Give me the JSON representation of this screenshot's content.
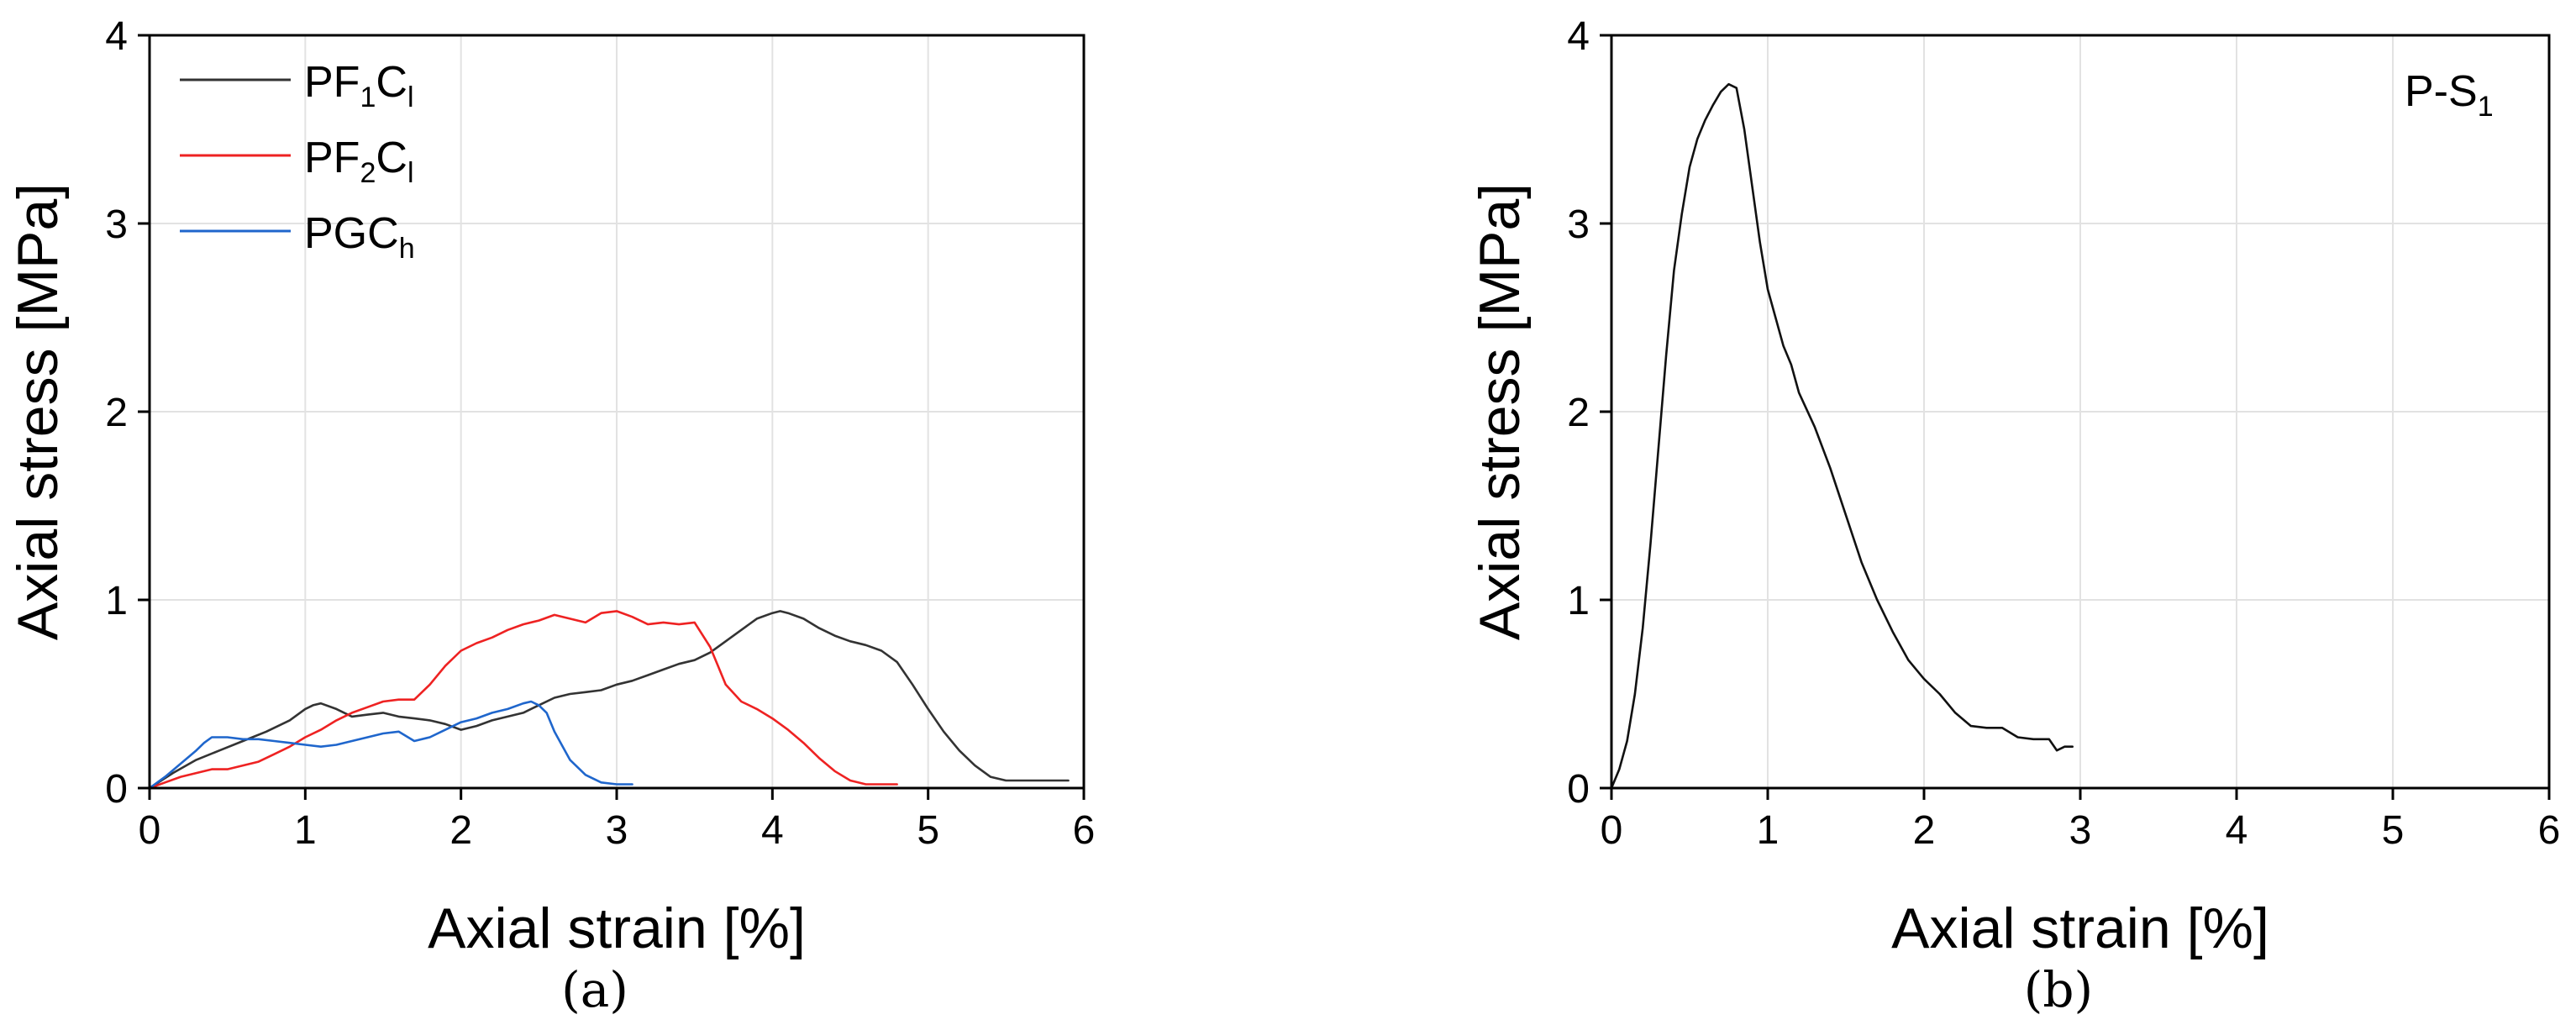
{
  "chart_data": [
    {
      "panel": "(a)",
      "type": "line",
      "xlabel": "Axial strain [%]",
      "ylabel": "Axial stress [MPa]",
      "xlim": [
        0,
        6
      ],
      "ylim": [
        0,
        4
      ],
      "xticks": [
        "0",
        "1",
        "2",
        "3",
        "4",
        "5",
        "6"
      ],
      "yticks": [
        "0",
        "1",
        "2",
        "3",
        "4"
      ],
      "grid": true,
      "legend_position": "top-left",
      "series": [
        {
          "name": "PF1Cl",
          "label_main": [
            "PF",
            "1",
            "C",
            "l"
          ],
          "color": "#333333",
          "x": [
            0,
            0.15,
            0.3,
            0.45,
            0.6,
            0.75,
            0.9,
            1.0,
            1.05,
            1.1,
            1.2,
            1.3,
            1.4,
            1.5,
            1.6,
            1.7,
            1.8,
            1.9,
            2.0,
            2.1,
            2.2,
            2.3,
            2.4,
            2.5,
            2.6,
            2.7,
            2.8,
            2.9,
            3.0,
            3.1,
            3.2,
            3.3,
            3.4,
            3.5,
            3.6,
            3.7,
            3.8,
            3.9,
            4.0,
            4.05,
            4.1,
            4.2,
            4.3,
            4.4,
            4.5,
            4.6,
            4.7,
            4.8,
            4.9,
            5.0,
            5.1,
            5.2,
            5.3,
            5.4,
            5.5,
            5.6,
            5.7,
            5.8,
            5.9
          ],
          "y": [
            0,
            0.08,
            0.15,
            0.2,
            0.25,
            0.3,
            0.36,
            0.42,
            0.44,
            0.45,
            0.42,
            0.38,
            0.39,
            0.4,
            0.38,
            0.37,
            0.36,
            0.34,
            0.31,
            0.33,
            0.36,
            0.38,
            0.4,
            0.44,
            0.48,
            0.5,
            0.51,
            0.52,
            0.55,
            0.57,
            0.6,
            0.63,
            0.66,
            0.68,
            0.72,
            0.78,
            0.84,
            0.9,
            0.93,
            0.94,
            0.93,
            0.9,
            0.85,
            0.81,
            0.78,
            0.76,
            0.73,
            0.67,
            0.55,
            0.42,
            0.3,
            0.2,
            0.12,
            0.06,
            0.04,
            0.04,
            0.04,
            0.04,
            0.04
          ]
        },
        {
          "name": "PF2Cl",
          "label_main": [
            "PF",
            "2",
            "C",
            "l"
          ],
          "color": "#ee2222",
          "x": [
            0,
            0.1,
            0.2,
            0.3,
            0.4,
            0.5,
            0.6,
            0.7,
            0.8,
            0.9,
            1.0,
            1.1,
            1.2,
            1.3,
            1.4,
            1.5,
            1.6,
            1.7,
            1.8,
            1.9,
            2.0,
            2.1,
            2.2,
            2.3,
            2.4,
            2.5,
            2.6,
            2.7,
            2.8,
            2.9,
            3.0,
            3.1,
            3.2,
            3.3,
            3.4,
            3.5,
            3.6,
            3.65,
            3.7,
            3.8,
            3.9,
            4.0,
            4.1,
            4.2,
            4.3,
            4.4,
            4.5,
            4.6,
            4.7,
            4.8
          ],
          "y": [
            0,
            0.03,
            0.06,
            0.08,
            0.1,
            0.1,
            0.12,
            0.14,
            0.18,
            0.22,
            0.27,
            0.31,
            0.36,
            0.4,
            0.43,
            0.46,
            0.47,
            0.47,
            0.55,
            0.65,
            0.73,
            0.77,
            0.8,
            0.84,
            0.87,
            0.89,
            0.92,
            0.9,
            0.88,
            0.93,
            0.94,
            0.91,
            0.87,
            0.88,
            0.87,
            0.88,
            0.75,
            0.65,
            0.55,
            0.46,
            0.42,
            0.37,
            0.31,
            0.24,
            0.16,
            0.09,
            0.04,
            0.02,
            0.02,
            0.02
          ]
        },
        {
          "name": "PGCh",
          "label_main": [
            "PGC",
            "h",
            "",
            ""
          ],
          "color": "#1f66cc",
          "x": [
            0,
            0.1,
            0.2,
            0.3,
            0.35,
            0.4,
            0.5,
            0.6,
            0.7,
            0.8,
            0.9,
            1.0,
            1.1,
            1.2,
            1.3,
            1.4,
            1.5,
            1.6,
            1.7,
            1.8,
            1.9,
            2.0,
            2.1,
            2.2,
            2.3,
            2.4,
            2.45,
            2.5,
            2.55,
            2.6,
            2.7,
            2.8,
            2.9,
            3.0,
            3.1
          ],
          "y": [
            0,
            0.06,
            0.13,
            0.2,
            0.24,
            0.27,
            0.27,
            0.26,
            0.26,
            0.25,
            0.24,
            0.23,
            0.22,
            0.23,
            0.25,
            0.27,
            0.29,
            0.3,
            0.25,
            0.27,
            0.31,
            0.35,
            0.37,
            0.4,
            0.42,
            0.45,
            0.46,
            0.44,
            0.4,
            0.3,
            0.15,
            0.07,
            0.03,
            0.02,
            0.02
          ]
        }
      ]
    },
    {
      "panel": "(b)",
      "type": "line",
      "xlabel": "Axial strain [%]",
      "ylabel": "Axial stress [MPa]",
      "xlim": [
        0,
        6
      ],
      "ylim": [
        0,
        4
      ],
      "xticks": [
        "0",
        "1",
        "2",
        "3",
        "4",
        "5",
        "6"
      ],
      "yticks": [
        "0",
        "1",
        "2",
        "3",
        "4"
      ],
      "grid": true,
      "annotation": [
        "P-S",
        "1"
      ],
      "series": [
        {
          "name": "",
          "color": "#111111",
          "x": [
            0,
            0.05,
            0.1,
            0.15,
            0.2,
            0.25,
            0.3,
            0.35,
            0.4,
            0.45,
            0.5,
            0.55,
            0.6,
            0.65,
            0.7,
            0.75,
            0.8,
            0.85,
            0.9,
            0.95,
            1.0,
            1.05,
            1.1,
            1.15,
            1.2,
            1.3,
            1.4,
            1.5,
            1.6,
            1.7,
            1.8,
            1.9,
            2.0,
            2.1,
            2.2,
            2.3,
            2.4,
            2.5,
            2.6,
            2.7,
            2.8,
            2.85,
            2.9,
            2.95
          ],
          "y": [
            0,
            0.1,
            0.25,
            0.5,
            0.85,
            1.3,
            1.8,
            2.3,
            2.75,
            3.05,
            3.3,
            3.45,
            3.55,
            3.63,
            3.7,
            3.74,
            3.72,
            3.5,
            3.2,
            2.9,
            2.65,
            2.5,
            2.35,
            2.25,
            2.1,
            1.92,
            1.7,
            1.45,
            1.2,
            1.0,
            0.83,
            0.68,
            0.58,
            0.5,
            0.4,
            0.33,
            0.32,
            0.32,
            0.27,
            0.26,
            0.26,
            0.2,
            0.22,
            0.22
          ]
        }
      ]
    }
  ],
  "captions": [
    "(a)",
    "(b)"
  ]
}
